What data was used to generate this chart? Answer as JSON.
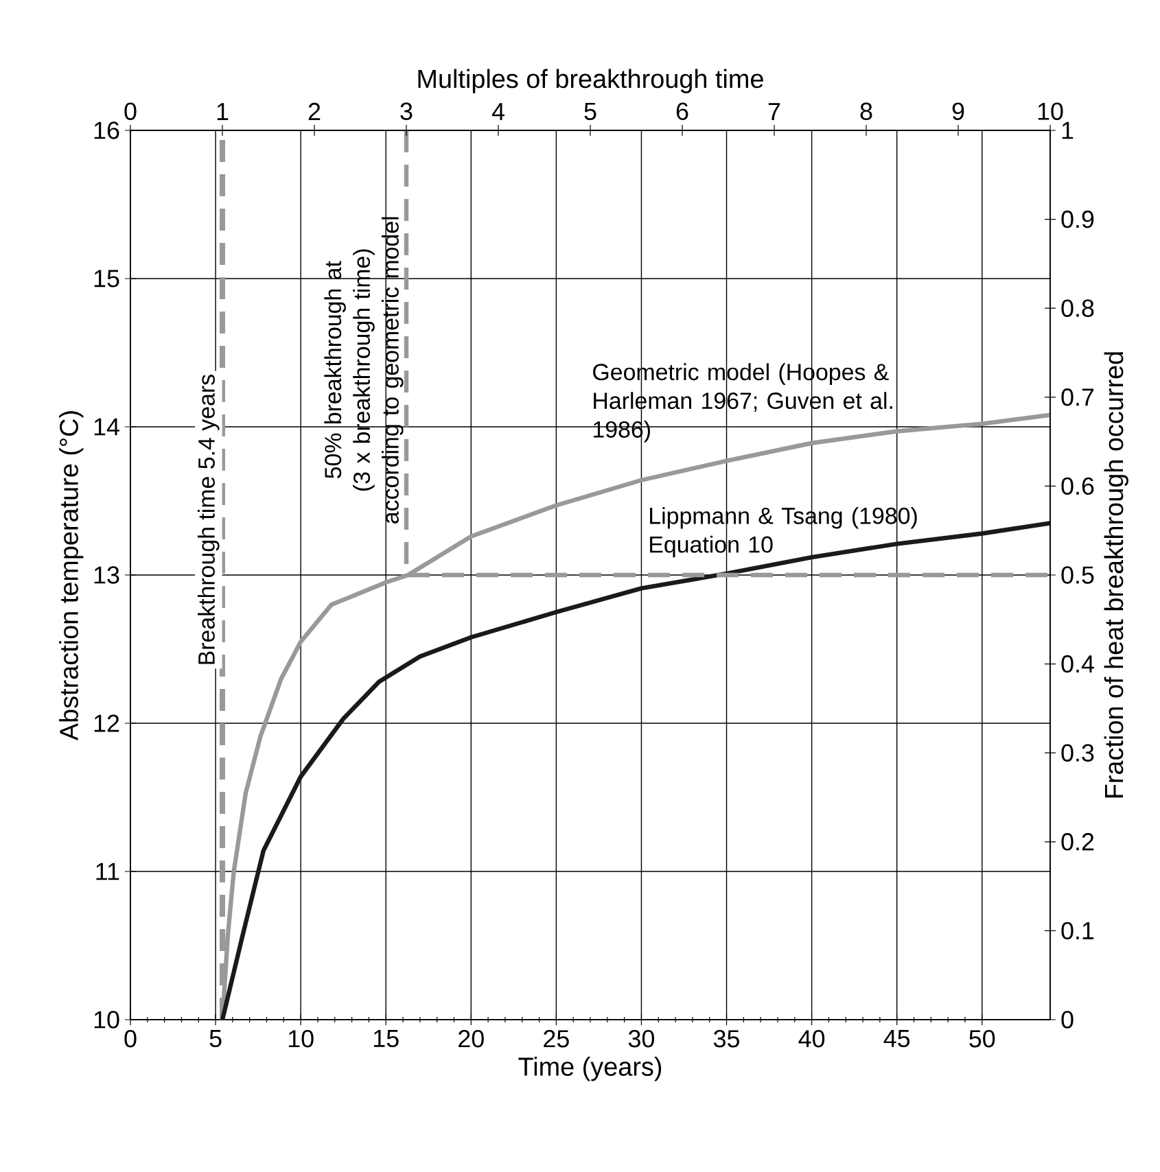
{
  "chart_data": {
    "type": "line",
    "xlabel": "Time (years)",
    "ylabel": "Abstraction temperature (°C)",
    "y2label": "Fraction of heat breakthrough occurred",
    "x2label": "Multiples of breakthrough time",
    "xlim": [
      0,
      54
    ],
    "xticks": [
      0,
      5,
      10,
      15,
      20,
      25,
      30,
      35,
      40,
      45,
      50
    ],
    "ylim": [
      10,
      16
    ],
    "yticks": [
      10,
      11,
      12,
      13,
      14,
      15,
      16
    ],
    "y2lim": [
      0,
      1
    ],
    "y2ticks": [
      0,
      0.1,
      0.2,
      0.3,
      0.4,
      0.5,
      0.6,
      0.7,
      0.8,
      0.9,
      1
    ],
    "x2lim": [
      0,
      10
    ],
    "x2ticks": [
      0,
      1,
      2,
      3,
      4,
      5,
      6,
      7,
      8,
      9,
      10
    ],
    "grid": true,
    "marker": "none",
    "line_style": "solid",
    "series": [
      {
        "name": "Geometric model (Hoopes & Harleman 1967; Guven et al. 1986)",
        "color": "#999999",
        "x": [
          5.4,
          5.72,
          6.07,
          6.77,
          7.63,
          8.85,
          10,
          11.8,
          15,
          16.3,
          20,
          25,
          30,
          35,
          40,
          45,
          50,
          54
        ],
        "values": [
          10,
          10.57,
          11.0,
          11.53,
          11.91,
          12.3,
          12.55,
          12.8,
          12.95,
          13.0,
          13.26,
          13.47,
          13.64,
          13.77,
          13.89,
          13.97,
          14.02,
          14.08
        ]
      },
      {
        "name": "Lippmann & Tsang (1980) Equation 10",
        "color": "#1a1a1a",
        "x": [
          5.4,
          6.59,
          7.81,
          10,
          12.5,
          14.6,
          17,
          20,
          25,
          30,
          35,
          40,
          45,
          50,
          54
        ],
        "values": [
          10,
          10.57,
          11.14,
          11.64,
          12.03,
          12.28,
          12.45,
          12.58,
          12.75,
          12.91,
          13.01,
          13.12,
          13.21,
          13.28,
          13.35
        ]
      },
      {
        "color": "#999999",
        "axis": "y2",
        "line_style": "dashed",
        "x": [
          16.2,
          16.2,
          54
        ],
        "values": [
          1,
          0.5,
          0.5
        ]
      }
    ],
    "ref_lines": [
      {
        "axis": "x",
        "value": 5.4,
        "label": "Breakthrough time 5.4 years",
        "color": "#999999",
        "line_style": "dashed"
      }
    ],
    "annotations": [
      "50% breakthrough at (3 x breakthrough time) according to geometric model"
    ]
  }
}
